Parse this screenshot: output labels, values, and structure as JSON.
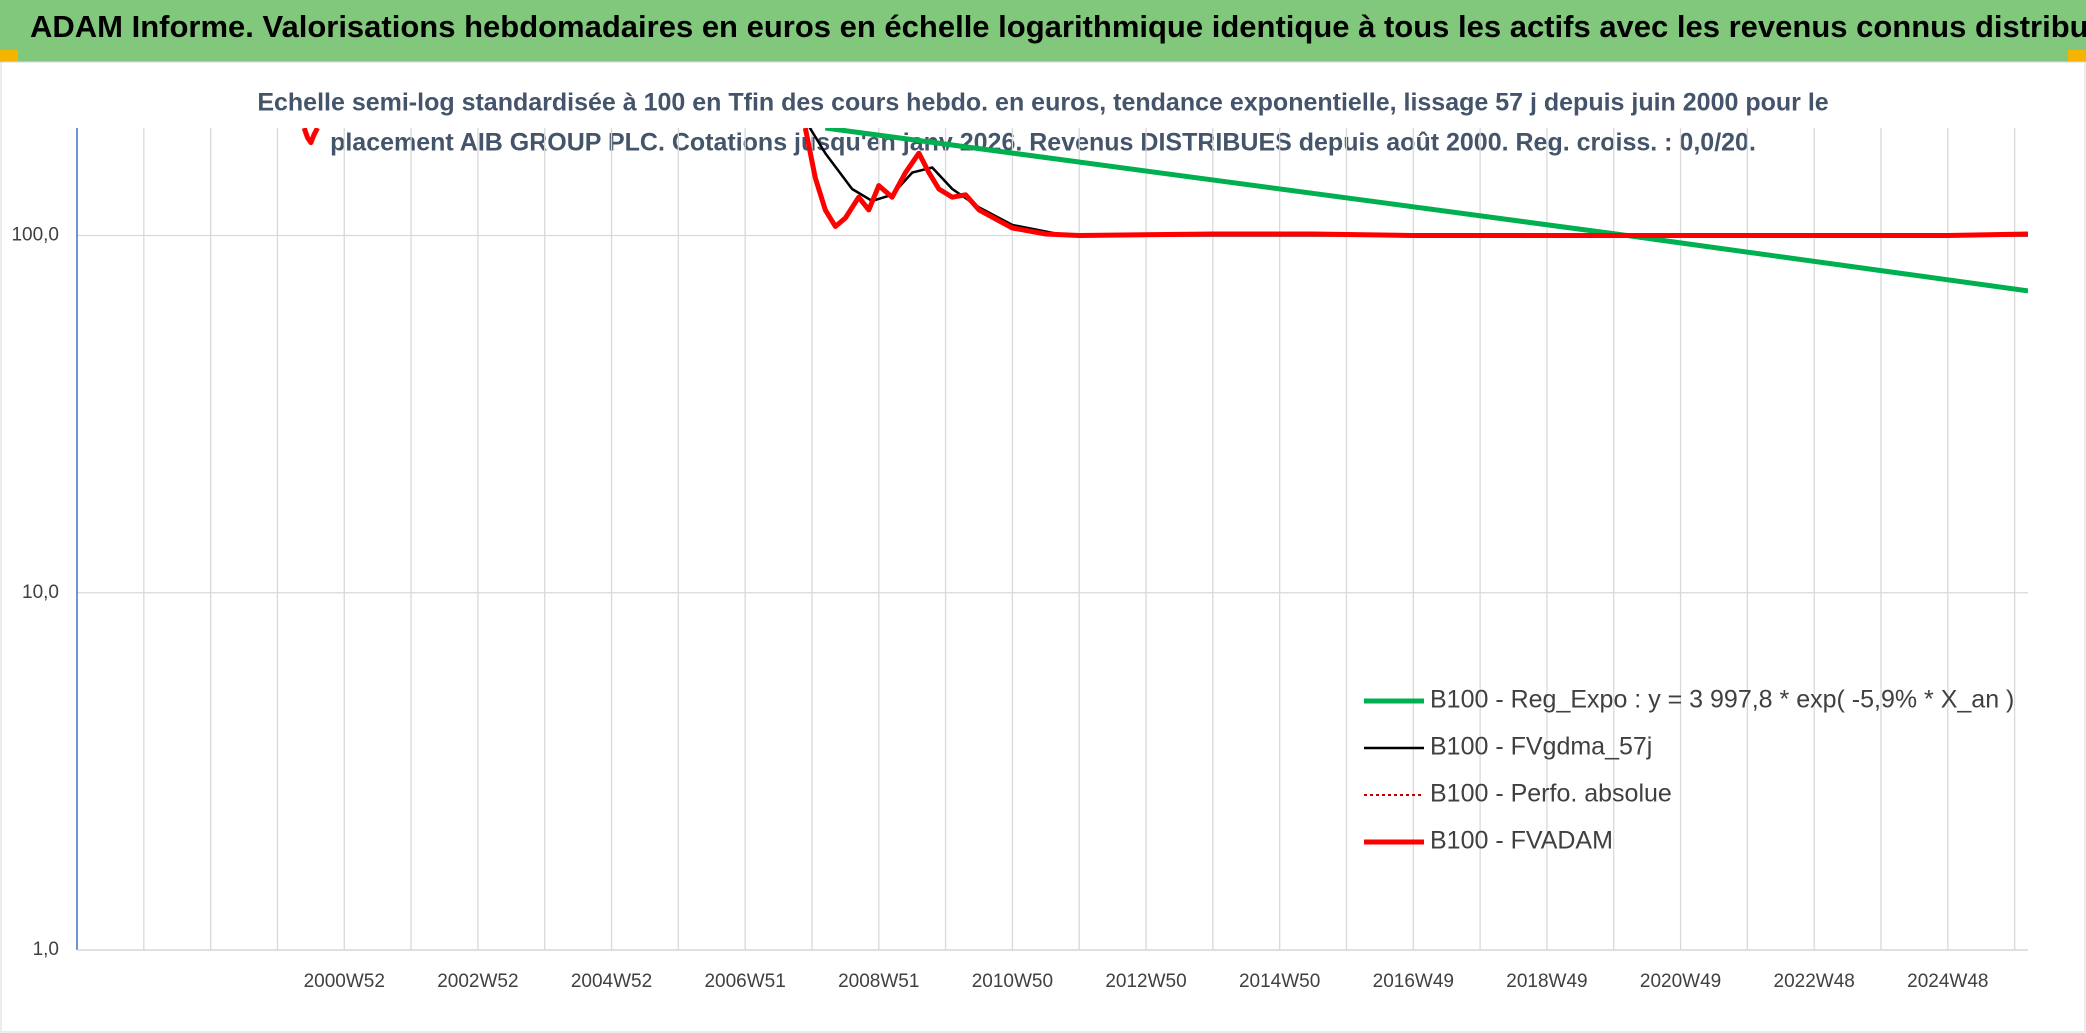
{
  "chart_data": {
    "type": "line",
    "title": "ADAM Informe. Valorisations hebdomadaires en euros en échelle logarithmique identique à tous les actifs avec les revenus connus distribués",
    "subtitle": [
      "Echelle semi-log standardisée à 100 en Tfin des cours hebdo. en euros, tendance exponentielle, lissage 57 j depuis juin 2000 pour le",
      "placement  AIB GROUP PLC. Cotations jusqu'en  janv 2026. Revenus DISTRIBUES depuis août 2000. Reg. croiss. : 0,0/20."
    ],
    "log_scale": true,
    "ylim": [
      1,
      200
    ],
    "yticks": [
      {
        "value": 1,
        "label": "1,0"
      },
      {
        "value": 10,
        "label": "10,0"
      },
      {
        "value": 100,
        "label": "100,0"
      }
    ],
    "xlim": [
      1997.0,
      2026.2
    ],
    "xticks": [
      {
        "value": 2001,
        "label": "2000W52"
      },
      {
        "value": 2003,
        "label": "2002W52"
      },
      {
        "value": 2005,
        "label": "2004W52"
      },
      {
        "value": 2007,
        "label": "2006W51"
      },
      {
        "value": 2009,
        "label": "2008W51"
      },
      {
        "value": 2011,
        "label": "2010W50"
      },
      {
        "value": 2013,
        "label": "2012W50"
      },
      {
        "value": 2015,
        "label": "2014W50"
      },
      {
        "value": 2017,
        "label": "2016W49"
      },
      {
        "value": 2019,
        "label": "2018W49"
      },
      {
        "value": 2021,
        "label": "2020W49"
      },
      {
        "value": 2023,
        "label": "2022W48"
      },
      {
        "value": 2025,
        "label": "2024W48"
      }
    ],
    "xgrid": [
      1998,
      1999,
      2000,
      2002,
      2004,
      2006,
      2008,
      2010,
      2012,
      2014,
      2016,
      2018,
      2020,
      2022,
      2024,
      2026
    ],
    "grid": true,
    "legend": "lower right",
    "series": [
      {
        "name": "B100 - Reg_Expo : y = 3 997,8 * exp( -5,9% *  X_an )",
        "color": "#00b050",
        "width": 5,
        "dash": false,
        "x": [
          2008.2,
          2020.2,
          2026.2
        ],
        "values": [
          200,
          100,
          70
        ]
      },
      {
        "name": "B100 - FVgdma_57j",
        "color": "#000000",
        "width": 2.5,
        "dash": false,
        "x": [
          2007.9,
          2008.2,
          2008.6,
          2008.9,
          2009.2,
          2009.5,
          2009.8,
          2010.1,
          2010.5,
          2011.0,
          2011.8,
          2013,
          2016,
          2020,
          2026.2
        ],
        "values": [
          210,
          170,
          135,
          125,
          130,
          150,
          155,
          135,
          120,
          107,
          100,
          100,
          100,
          100,
          100
        ]
      },
      {
        "name": "B100 - Perfo. absolue",
        "color": "#c00000",
        "width": 2,
        "dash": true,
        "x": [],
        "values": []
      },
      {
        "name": "B100 - FVADAM",
        "color": "#ff0000",
        "width": 5,
        "dash": false,
        "x": [
          2000.4,
          2000.45,
          2000.5,
          2000.55,
          2000.6,
          2005,
          2007.9,
          2008.05,
          2008.2,
          2008.35,
          2008.5,
          2008.7,
          2008.85,
          2009.0,
          2009.2,
          2009.4,
          2009.6,
          2009.75,
          2009.9,
          2010.1,
          2010.3,
          2010.5,
          2010.8,
          2011.0,
          2011.5,
          2012,
          2014,
          2015.5,
          2017,
          2020,
          2023,
          2025,
          2026.2
        ],
        "values": [
          200,
          188,
          182,
          192,
          200,
          null,
          200,
          145,
          118,
          106,
          112,
          128,
          118,
          138,
          128,
          150,
          170,
          150,
          135,
          128,
          130,
          118,
          110,
          105,
          101,
          100,
          101,
          101,
          100,
          100,
          100,
          100,
          101
        ]
      }
    ]
  }
}
